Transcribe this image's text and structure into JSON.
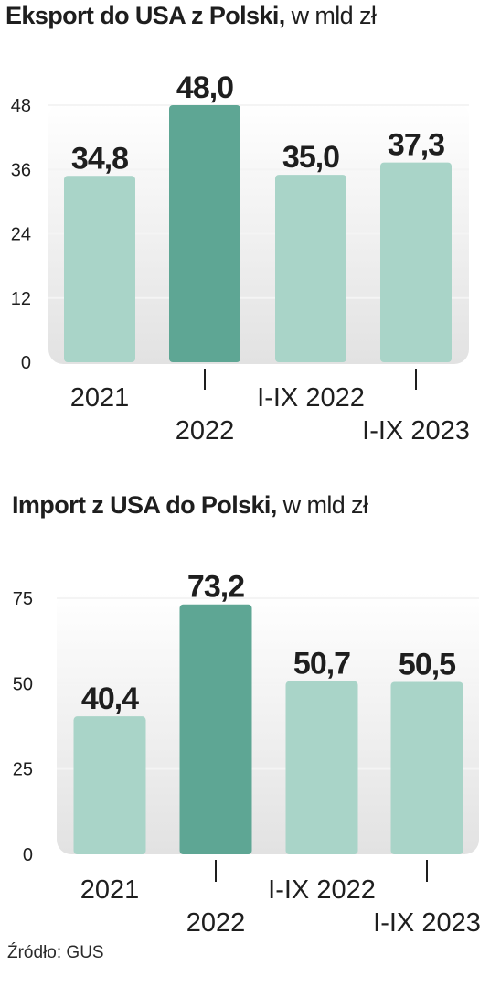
{
  "charts": [
    {
      "title_bold": "Eksport do USA z Polski,",
      "title_unit": "w mld zł"
    },
    {
      "title_bold": "Import z USA do Polski,",
      "title_unit": "w mld zł"
    }
  ],
  "source": "Źródło: GUS",
  "colors": {
    "bar_light": "#a9d4c8",
    "bar_highlight": "#5ea694",
    "panel_top": "#ffffff",
    "panel_bottom": "#e2e2e2",
    "grid": "#f4f4f4",
    "text": "#1e1e1e"
  },
  "chart_data": [
    {
      "type": "bar",
      "title": "Eksport do USA z Polski, w mld zł",
      "categories": [
        "2021",
        "2022",
        "I-IX 2022",
        "I-IX 2023"
      ],
      "values": [
        34.8,
        48.0,
        35.0,
        37.3
      ],
      "value_labels": [
        "34,8",
        "48,0",
        "35,0",
        "37,3"
      ],
      "highlight_index": 1,
      "yticks": [
        0,
        12,
        24,
        36,
        48
      ],
      "ylim": [
        0,
        48
      ],
      "grid": true,
      "legend": "none"
    },
    {
      "type": "bar",
      "title": "Import z USA do Polski, w mld zł",
      "categories": [
        "2021",
        "2022",
        "I-IX 2022",
        "I-IX 2023"
      ],
      "values": [
        40.4,
        73.2,
        50.7,
        50.5
      ],
      "value_labels": [
        "40,4",
        "73,2",
        "50,7",
        "50,5"
      ],
      "highlight_index": 1,
      "yticks": [
        0,
        25,
        50,
        75
      ],
      "ylim": [
        0,
        75
      ],
      "grid": true,
      "legend": "none"
    }
  ]
}
